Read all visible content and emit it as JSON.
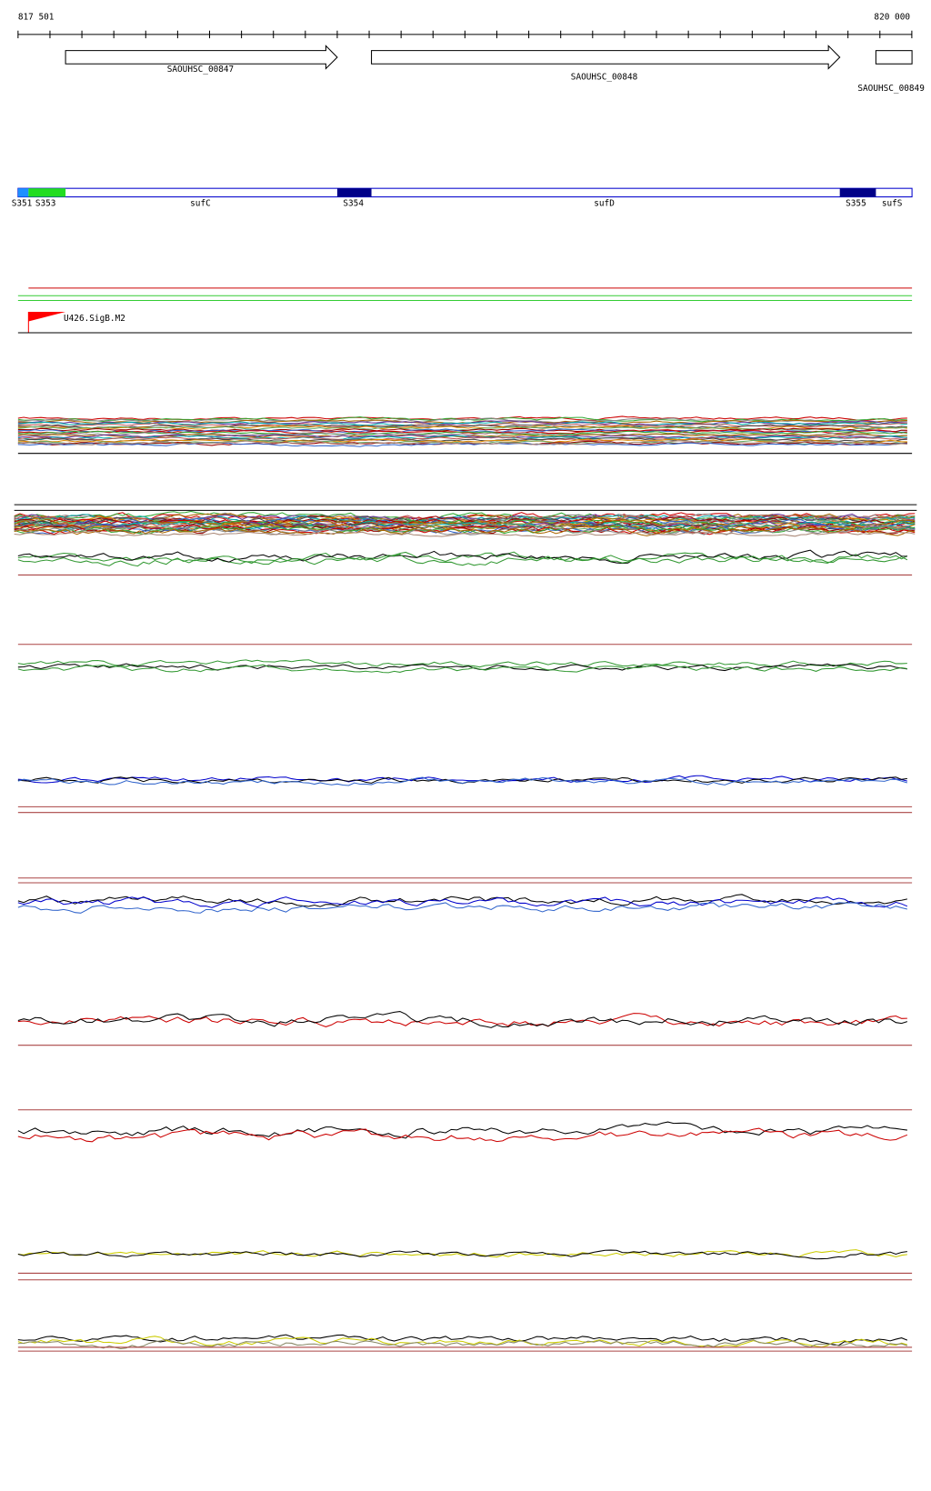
{
  "ruler": {
    "start": "817 501",
    "end": "820 000"
  },
  "genes": [
    {
      "label": "SAOUHSC_00847"
    },
    {
      "label": "SAOUHSC_00848"
    },
    {
      "label": "SAOUHSC_00849"
    }
  ],
  "segments": [
    {
      "label": "S351"
    },
    {
      "label": "S353"
    },
    {
      "label": "sufC"
    },
    {
      "label": "S354"
    },
    {
      "label": "sufD"
    },
    {
      "label": "S355"
    },
    {
      "label": "sufS"
    }
  ],
  "promoter": {
    "label": "U426.SigB.M2"
  }
}
